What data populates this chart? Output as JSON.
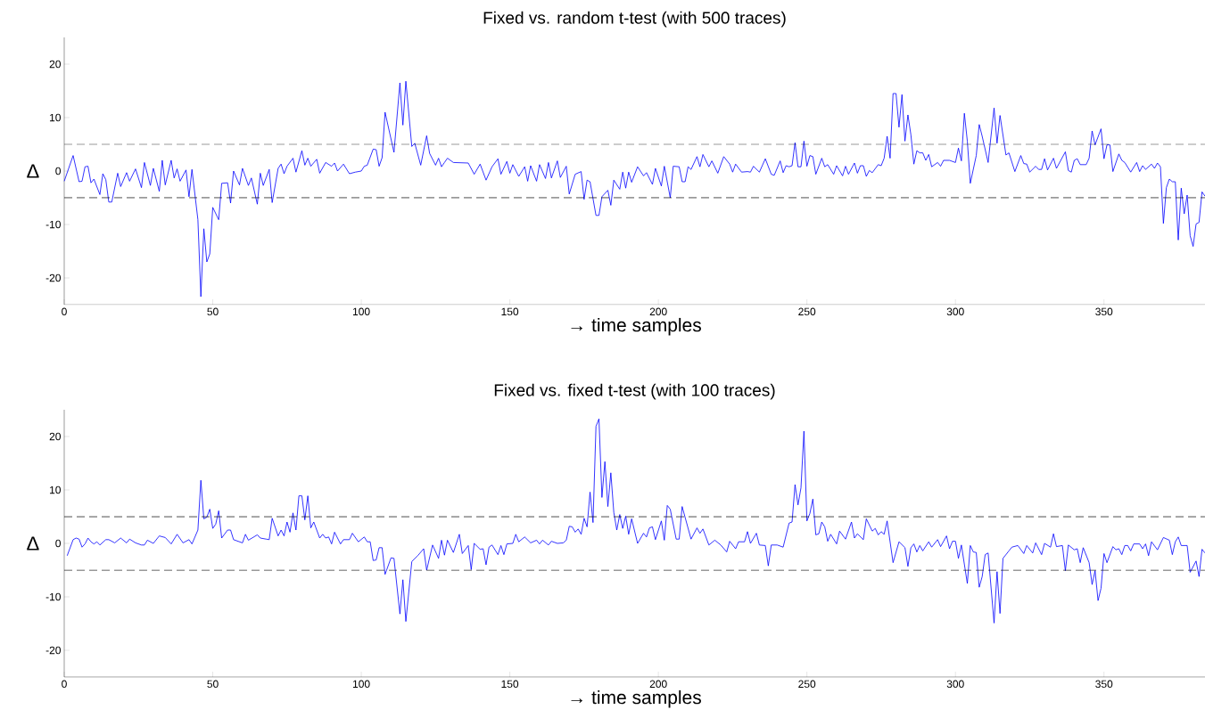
{
  "chart_data": [
    {
      "type": "line",
      "title": "Fixed vs. random t-test (with 500 traces)",
      "xlabel": "→ time samples",
      "ylabel": "Δ",
      "xlim": [
        0,
        384
      ],
      "ylim": [
        -25,
        25
      ],
      "xticks": [
        0,
        50,
        100,
        150,
        200,
        250,
        300,
        350
      ],
      "yticks": [
        -20,
        -10,
        0,
        10,
        20
      ],
      "ref_lines": [
        {
          "axis": "y",
          "value": 5,
          "color": "#000000",
          "line_style": "dashed"
        },
        {
          "axis": "y",
          "value": -5,
          "color": "#000000",
          "line_style": "dashed"
        }
      ],
      "series": [
        {
          "color": "#0000ff",
          "x": [
            0,
            3,
            5,
            6,
            7,
            8,
            9,
            10,
            12,
            13,
            14,
            15,
            16,
            18,
            19,
            21,
            22,
            24,
            26,
            27,
            29,
            30,
            32,
            33,
            34,
            36,
            37,
            38,
            39,
            41,
            42,
            43,
            45,
            46,
            47,
            48,
            49,
            50,
            52,
            53,
            55,
            56,
            57,
            59,
            60,
            62,
            63,
            65,
            66,
            67,
            69,
            70,
            72,
            73,
            74,
            75,
            77,
            78,
            80,
            81,
            82,
            83,
            85,
            86,
            88,
            90,
            91,
            92,
            94,
            96,
            98,
            100,
            101,
            102,
            104,
            105,
            106,
            107,
            108,
            111,
            113,
            114,
            115,
            117,
            118,
            120,
            122,
            123,
            125,
            126,
            127,
            128,
            129,
            131,
            136,
            138,
            140,
            142,
            144,
            146,
            147,
            149,
            150,
            151,
            153,
            155,
            156,
            157,
            159,
            160,
            162,
            163,
            164,
            166,
            167,
            169,
            170,
            172,
            174,
            175,
            176,
            177,
            179,
            180,
            181,
            183,
            184,
            185,
            187,
            188,
            189,
            190,
            191,
            193,
            195,
            196,
            198,
            199,
            201,
            202,
            204,
            205,
            207,
            208,
            209,
            210,
            211,
            213,
            214,
            215,
            217,
            218,
            220,
            222,
            224,
            225,
            226,
            228,
            230,
            231,
            232,
            234,
            236,
            238,
            239,
            241,
            242,
            243,
            244,
            245,
            246,
            247,
            248,
            249,
            250,
            251,
            252,
            253,
            255,
            256,
            257,
            259,
            260,
            262,
            263,
            264,
            266,
            267,
            268,
            269,
            270,
            271,
            272,
            274,
            275,
            276,
            277,
            278,
            279,
            280,
            281,
            282,
            283,
            284,
            285,
            286,
            287,
            288,
            289,
            290,
            291,
            292,
            294,
            295,
            296,
            298,
            300,
            301,
            302,
            303,
            304,
            305,
            307,
            308,
            309,
            311,
            313,
            314,
            315,
            317,
            318,
            320,
            322,
            323,
            324,
            325,
            327,
            328,
            329,
            330,
            331,
            333,
            334,
            337,
            338,
            339,
            340,
            341,
            342,
            344,
            345,
            346,
            347,
            349,
            350,
            351,
            352,
            353,
            355,
            356,
            357,
            359,
            361,
            362,
            363,
            364,
            366,
            367,
            368,
            369,
            370,
            371,
            372,
            373,
            374,
            375,
            376,
            377,
            378,
            379,
            380,
            381,
            382,
            383,
            384
          ],
          "values": [
            -1.9,
            2.9,
            -2.0,
            -1.9,
            0.8,
            0.9,
            -2.2,
            -1.5,
            -4.4,
            -0.5,
            -1.6,
            -5.8,
            -5.8,
            -0.4,
            -2.9,
            -0.3,
            -1.9,
            0.4,
            -3.1,
            1.6,
            -2.7,
            0.5,
            -3.8,
            2.0,
            -2.6,
            2.0,
            -1.3,
            0.4,
            -1.9,
            0.2,
            -4.8,
            0.3,
            -9.1,
            -23.5,
            -10.8,
            -17.0,
            -15.5,
            -6.8,
            -9.1,
            -2.3,
            -2.2,
            -6.0,
            0,
            -2.6,
            0.5,
            -2.7,
            -1.3,
            -6.2,
            -0.4,
            -2.7,
            0.3,
            -5.9,
            0.5,
            1.3,
            -0.5,
            0.9,
            2.4,
            -0.2,
            3.8,
            1.1,
            2.4,
            0.9,
            2.2,
            -0.4,
            1.6,
            0.9,
            1.5,
            0,
            1.3,
            -0.5,
            -0.2,
            0,
            0.9,
            1.1,
            4.1,
            4.0,
            0.9,
            2.5,
            11.0,
            3.5,
            16.5,
            8.6,
            16.8,
            4.6,
            5.2,
            1.1,
            6.6,
            3.3,
            1.1,
            2.4,
            0.8,
            1.6,
            2.4,
            1.6,
            1.5,
            -0.6,
            1.3,
            -1.7,
            0.8,
            2.3,
            -0.6,
            1.8,
            -0.4,
            1.2,
            -1.0,
            0.8,
            -1.9,
            1.0,
            -1.9,
            1.2,
            -1.4,
            1.6,
            -1.3,
            1.9,
            -1.2,
            0.9,
            -4.3,
            -0.6,
            -0.1,
            -5.3,
            -1.7,
            -2.0,
            -8.3,
            -8.3,
            -4.8,
            -3.6,
            -6.4,
            -1.7,
            -3.4,
            -0.2,
            -3.2,
            -0.2,
            -2.1,
            0.8,
            -0.9,
            -0.3,
            -2.5,
            0.5,
            -2.8,
            0.9,
            -5.0,
            0.9,
            0.8,
            -2.0,
            -2.0,
            0.8,
            0.3,
            2.7,
            0.8,
            3.1,
            0.8,
            1.9,
            -0.4,
            2.7,
            1.3,
            -0.2,
            1.3,
            -0.2,
            -0.1,
            -0.2,
            0.9,
            -0.2,
            2.3,
            -0.6,
            -0.8,
            1.9,
            -0.3,
            1.0,
            0.8,
            1.0,
            5.3,
            0.8,
            0.8,
            5.6,
            0.9,
            2.9,
            2.7,
            -0.6,
            2.4,
            0.8,
            1.2,
            -0.6,
            1.0,
            -0.9,
            0.9,
            -0.6,
            1.5,
            -0.4,
            1.0,
            1.0,
            -1.0,
            0.1,
            -0.3,
            1.2,
            1.0,
            2.4,
            6.5,
            2.4,
            14.5,
            14.5,
            8.2,
            14.3,
            5.6,
            10.5,
            6.8,
            1.3,
            3.8,
            3.4,
            3.4,
            2.0,
            3.1,
            0.8,
            1.6,
            0.9,
            2.0,
            2.0,
            1.6,
            4.3,
            1.9,
            10.8,
            5.6,
            -2.3,
            2.9,
            8.7,
            6.5,
            1.6,
            11.8,
            5.2,
            10.4,
            3.0,
            3.4,
            -0.1,
            2.9,
            1.4,
            1.3,
            -0.2,
            0.9,
            0.3,
            0.3,
            2.3,
            0.2,
            2.4,
            0.5,
            3.6,
            0.1,
            -0.2,
            2.0,
            2.3,
            1.2,
            1.2,
            2.4,
            7.5,
            4.9,
            7.9,
            2.3,
            4.9,
            4.9,
            -0.1,
            3.2,
            2.0,
            1.6,
            -0.2,
            1.6,
            -0.1,
            1.0,
            0.3,
            1.3,
            0.5,
            1.5,
            0.8,
            -9.8,
            -3.1,
            -1.5,
            -2.0,
            -2.0,
            -12.9,
            -3.2,
            -8.0,
            -4.5,
            -12.1,
            -14.1,
            -9.9,
            -9.6,
            -3.9,
            -4.7
          ]
        }
      ]
    },
    {
      "type": "line",
      "title": "Fixed vs. fixed t-test (with 100 traces)",
      "xlabel": "→ time samples",
      "ylabel": "Δ",
      "xlim": [
        0,
        384
      ],
      "ylim": [
        -25,
        25
      ],
      "xticks": [
        0,
        50,
        100,
        150,
        200,
        250,
        300,
        350
      ],
      "yticks": [
        -20,
        -10,
        0,
        10,
        20
      ],
      "ref_lines": [
        {
          "axis": "y",
          "value": 5,
          "color": "#000000",
          "line_style": "dashed"
        },
        {
          "axis": "y",
          "value": -5,
          "color": "#000000",
          "line_style": "dashed"
        }
      ],
      "series": [
        {
          "color": "#0000ff",
          "x": [
            1,
            3,
            4,
            5,
            6,
            7,
            8,
            9,
            10,
            11,
            12,
            14,
            15,
            17,
            19,
            21,
            22,
            24,
            26,
            27,
            28,
            30,
            32,
            34,
            36,
            38,
            40,
            42,
            43,
            45,
            46,
            47,
            48,
            49,
            50,
            51,
            52,
            53,
            55,
            56,
            57,
            60,
            61,
            62,
            65,
            66,
            68,
            69,
            70,
            72,
            73,
            74,
            75,
            76,
            77,
            78,
            79,
            80,
            81,
            82,
            83,
            84,
            86,
            87,
            88,
            89,
            90,
            91,
            93,
            94,
            96,
            97,
            99,
            101,
            102,
            103,
            104,
            105,
            106,
            107,
            108,
            110,
            111,
            113,
            114,
            115,
            117,
            119,
            121,
            122,
            124,
            126,
            127,
            128,
            129,
            131,
            133,
            134,
            136,
            137,
            138,
            140,
            141,
            142,
            143,
            144,
            146,
            147,
            148,
            149,
            151,
            152,
            153,
            155,
            157,
            159,
            160,
            161,
            163,
            164,
            166,
            168,
            169,
            170,
            171,
            172,
            173,
            174,
            175,
            176,
            177,
            178,
            179,
            180,
            181,
            182,
            183,
            184,
            185,
            186,
            187,
            188,
            189,
            190,
            191,
            193,
            195,
            196,
            197,
            198,
            199,
            201,
            202,
            203,
            204,
            206,
            207,
            208,
            211,
            213,
            214,
            215,
            217,
            219,
            221,
            223,
            224,
            226,
            227,
            229,
            230,
            231,
            233,
            234,
            236,
            237,
            238,
            240,
            242,
            244,
            245,
            246,
            247,
            248,
            249,
            250,
            251,
            252,
            253,
            254,
            255,
            256,
            257,
            258,
            260,
            261,
            263,
            265,
            266,
            267,
            269,
            270,
            272,
            273,
            274,
            275,
            276,
            277,
            279,
            281,
            283,
            284,
            285,
            286,
            287,
            288,
            289,
            291,
            292,
            294,
            295,
            297,
            298,
            299,
            300,
            301,
            302,
            304,
            305,
            306,
            307,
            308,
            309,
            310,
            311,
            313,
            314,
            315,
            316,
            318,
            319,
            321,
            323,
            324,
            326,
            327,
            329,
            330,
            332,
            333,
            334,
            336,
            337,
            338,
            340,
            341,
            342,
            343,
            345,
            346,
            347,
            348,
            349,
            350,
            351,
            353,
            354,
            355,
            356,
            357,
            358,
            359,
            360,
            362,
            363,
            364,
            365,
            366,
            368,
            370,
            372,
            373,
            374,
            375,
            376,
            378,
            379,
            381,
            382,
            383,
            384
          ],
          "values": [
            -2.3,
            0.7,
            1.0,
            0.8,
            -0.7,
            -0.1,
            1.0,
            0.3,
            -0.1,
            0.3,
            -0.3,
            0.7,
            0.7,
            0.1,
            1.0,
            0.1,
            0.8,
            0.1,
            -0.3,
            -0.3,
            0.6,
            0,
            1.4,
            1.1,
            -0.1,
            1.7,
            0.1,
            0.7,
            -0.1,
            2.5,
            11.8,
            4.6,
            4.9,
            6.4,
            2.8,
            3.6,
            6.1,
            1.0,
            2.5,
            2.5,
            0.7,
            0.1,
            1.7,
            0.6,
            1.6,
            1.0,
            0.8,
            0.7,
            4.7,
            1.4,
            2.5,
            1.4,
            4.0,
            2.1,
            5.7,
            2.5,
            8.9,
            8.9,
            4.4,
            8.9,
            2.9,
            4.0,
            1.0,
            1.7,
            1.0,
            1.2,
            -0.1,
            2.1,
            -0.1,
            0.7,
            0.7,
            1.9,
            0.3,
            1.2,
            0.3,
            0.3,
            -3.2,
            -3.1,
            -0.8,
            -0.8,
            -5.8,
            -2.7,
            -2.8,
            -13.2,
            -6.8,
            -14.6,
            -3.4,
            -2.3,
            -1.0,
            -5.0,
            -0.3,
            -2.8,
            0.6,
            -2.2,
            0.6,
            -1.7,
            1.7,
            -1.9,
            -0.4,
            -4.9,
            0,
            -1.1,
            -1.0,
            -4.0,
            -0.7,
            -0.3,
            -2.1,
            -0.4,
            -2.1,
            -0.1,
            0,
            1.7,
            0.3,
            1.2,
            0.1,
            0.6,
            -0.1,
            0.6,
            -0.3,
            0.4,
            0,
            0.1,
            0.6,
            3.2,
            3.1,
            2.1,
            2.7,
            1.7,
            4.7,
            3.1,
            9.6,
            3.9,
            21.9,
            23.3,
            8.6,
            15.3,
            6.9,
            13.2,
            5.8,
            2.5,
            5.4,
            2.8,
            5.1,
            1.7,
            4.6,
            0,
            1.9,
            1.2,
            2.9,
            3.1,
            0.7,
            4.2,
            0.6,
            7.1,
            6.4,
            0.8,
            0.8,
            6.9,
            0.8,
            2.9,
            1.9,
            2.7,
            -0.3,
            0.6,
            -0.3,
            -1.6,
            0.4,
            -1.0,
            0.3,
            0.3,
            2.2,
            0,
            1.9,
            -0.3,
            -0.4,
            -4.2,
            -0.3,
            -0.3,
            -0.7,
            3.8,
            4.0,
            11.0,
            7.2,
            10.4,
            21.0,
            4.2,
            5.6,
            8.3,
            1.6,
            1.8,
            4.0,
            3.1,
            0.4,
            1.7,
            -0.1,
            2.3,
            0.8,
            4.0,
            1.0,
            1.8,
            0.7,
            4.6,
            2.3,
            2.8,
            1.6,
            2.2,
            1.7,
            4.2,
            -3.6,
            0.3,
            -0.8,
            -4.3,
            -0.8,
            -0.1,
            -1.6,
            -0.4,
            -1.4,
            0.3,
            -0.7,
            0.7,
            -0.6,
            1.4,
            -1.0,
            0.4,
            0.4,
            -2.8,
            -0.3,
            -7.5,
            -0.4,
            -1.6,
            -1.7,
            -8.2,
            -6.2,
            -2.1,
            -1.8,
            -14.9,
            -5.3,
            -13.1,
            -2.8,
            -1.4,
            -0.7,
            -0.4,
            -1.9,
            -0.4,
            -1.8,
            0.1,
            -2.1,
            0,
            -0.7,
            1.8,
            -0.6,
            -0.4,
            -5.1,
            -0.3,
            -1.2,
            -1.0,
            -3.6,
            -0.8,
            -3.6,
            -7.7,
            -5.1,
            -10.7,
            -8.4,
            -1.9,
            -3.6,
            -0.6,
            -1.2,
            -1.0,
            -2.1,
            -0.4,
            -0.4,
            -1.4,
            -0.1,
            -0.1,
            -1.0,
            -0.1,
            -2.3,
            0.3,
            -1.2,
            1.1,
            0.6,
            -2.1,
            0.3,
            1.2,
            -0.4,
            -0.4,
            -5.4,
            -3.3,
            -6.2,
            -1.1,
            -1.8
          ]
        }
      ]
    }
  ]
}
